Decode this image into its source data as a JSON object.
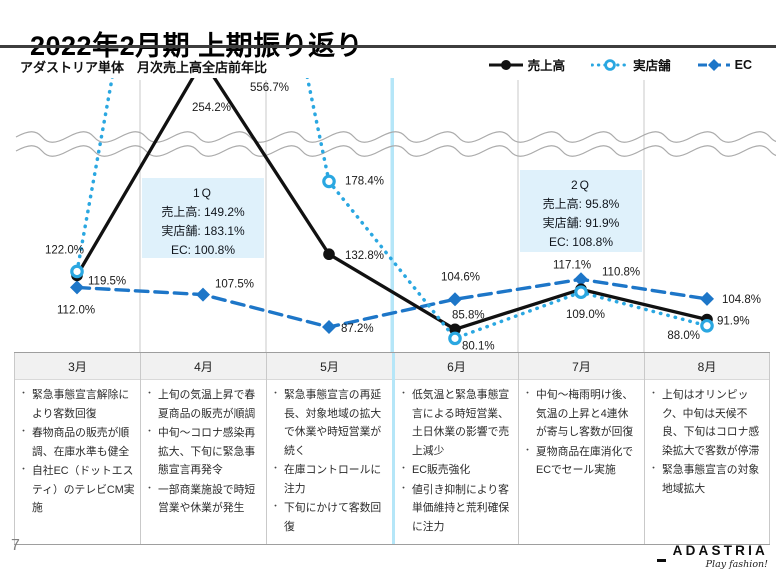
{
  "header": {
    "title": "2022年2月期 上期振り返り"
  },
  "chart_head": {
    "company": "アダストリア単体",
    "metric": "月次売上高全店前年比"
  },
  "legend": [
    {
      "label": "売上高"
    },
    {
      "label": "実店舗"
    },
    {
      "label": "EC"
    }
  ],
  "colors": {
    "sales": "#111111",
    "stores": "#2AA7E1",
    "ec": "#1D76C8",
    "quarter_divider": "#B5E6F8",
    "annotation_bg": "#DFF1FB",
    "gridline": "#C9C9C9",
    "axis_break_wave": "#ABABAB"
  },
  "chart_data": {
    "type": "line",
    "unit": "%",
    "title": "月次売上高全店前年比",
    "categories": [
      "3月",
      "4月",
      "5月",
      "6月",
      "7月",
      "8月"
    ],
    "series": [
      {
        "name": "売上高",
        "values": [
          119.5,
          254.2,
          132.8,
          85.8,
          110.8,
          91.9
        ]
      },
      {
        "name": "実店舗",
        "values": [
          122.0,
          556.7,
          178.4,
          80.1,
          109.0,
          88.0
        ]
      },
      {
        "name": "EC",
        "values": [
          112.0,
          107.5,
          87.2,
          104.6,
          117.1,
          104.8
        ]
      }
    ],
    "axis_break": {
      "present": true,
      "note": "二重波線による省略（254.2%・556.7%は軸外）"
    },
    "quarter_divider_between": [
      "5月",
      "6月"
    ],
    "annotations": [
      {
        "title": "1Q",
        "lines": [
          "売上高: 149.2%",
          "実店舗: 183.1%",
          "EC: 100.8%"
        ]
      },
      {
        "title": "2Q",
        "lines": [
          "売上高: 95.8%",
          "実店舗: 91.9%",
          "EC: 108.8%"
        ]
      }
    ]
  },
  "table": {
    "columns": [
      {
        "month": "3月",
        "bullets": [
          "緊急事態宣言解除により客数回復",
          "春物商品の販売が順調、在庫水準も健全",
          "自社EC（ドットエスティ）のテレビCM実施"
        ]
      },
      {
        "month": "4月",
        "bullets": [
          "上旬の気温上昇で春夏商品の販売が順調",
          "中旬～コロナ感染再拡大、下旬に緊急事態宣言再発令",
          "一部商業施設で時短営業や休業が発生"
        ]
      },
      {
        "month": "5月",
        "bullets": [
          "緊急事態宣言の再延長、対象地域の拡大で休業や時短営業が続く",
          "在庫コントロールに注力",
          "下旬にかけて客数回復"
        ]
      },
      {
        "month": "6月",
        "bullets": [
          "低気温と緊急事態宣言による時短営業、土日休業の影響で売上減少",
          "EC販売強化",
          "値引き抑制により客単価維持と荒利確保に注力"
        ]
      },
      {
        "month": "7月",
        "bullets": [
          "中旬～梅雨明け後、気温の上昇と4連休が寄与し客数が回復",
          "夏物商品在庫消化でECでセール実施"
        ]
      },
      {
        "month": "8月",
        "bullets": [
          "上旬はオリンピック、中旬は天候不良、下旬はコロナ感染拡大で客数が停滞",
          "緊急事態宣言の対象地域拡大"
        ]
      }
    ]
  },
  "footer": {
    "page_number": "7",
    "logo": "ADASTRIA",
    "tagline": "Play fashion!"
  }
}
